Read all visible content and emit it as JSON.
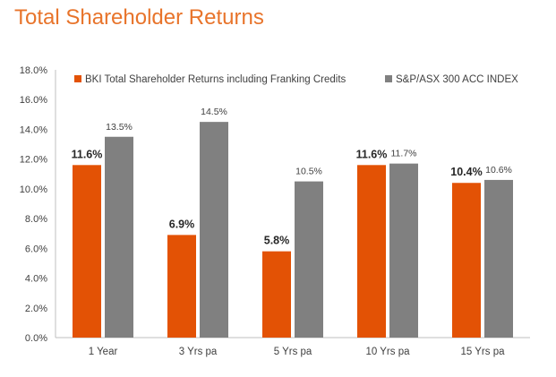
{
  "chart_data": {
    "type": "bar",
    "title": "Total Shareholder Returns",
    "categories": [
      "1 Year",
      "3 Yrs pa",
      "5 Yrs pa",
      "10 Yrs pa",
      "15 Yrs pa"
    ],
    "series": [
      {
        "name": "BKI Total Shareholder Returns including Franking Credits",
        "values": [
          11.6,
          6.9,
          5.8,
          11.6,
          10.4
        ],
        "labels": [
          "11.6%",
          "6.9%",
          "5.8%",
          "11.6%",
          "10.4%"
        ],
        "color": "#E35205"
      },
      {
        "name": "S&P/ASX 300 ACC INDEX",
        "values": [
          13.5,
          14.5,
          10.5,
          11.7,
          10.6
        ],
        "labels": [
          "13.5%",
          "14.5%",
          "10.5%",
          "11.7%",
          "10.6%"
        ],
        "color": "#808080"
      }
    ],
    "ylim": [
      0,
      18
    ],
    "yticks": [
      0,
      2,
      4,
      6,
      8,
      10,
      12,
      14,
      16,
      18
    ],
    "ytick_labels": [
      "0.0%",
      "2.0%",
      "4.0%",
      "6.0%",
      "8.0%",
      "10.0%",
      "12.0%",
      "14.0%",
      "16.0%",
      "18.0%"
    ],
    "xlabel": "",
    "ylabel": "",
    "grid": false,
    "legend_position": "top",
    "title_color": "#E8742B",
    "axis_color": "#BFBFBF",
    "text_color": "#404040"
  }
}
